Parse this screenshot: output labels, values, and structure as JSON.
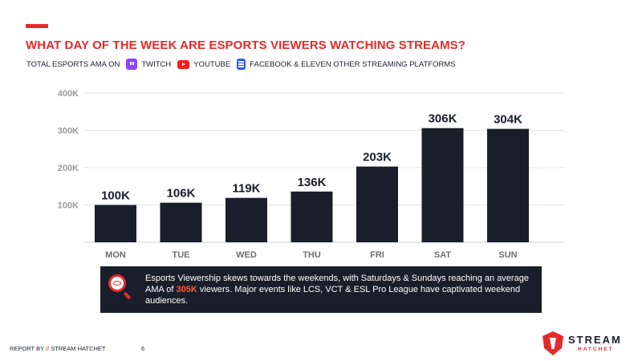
{
  "header": {
    "title": "WHAT DAY OF THE WEEK ARE ESPORTS VIEWERS WATCHING STREAMS?",
    "subtitle_prefix": "TOTAL ESPORTS AMA ON",
    "platforms": [
      {
        "label": "TWITCH",
        "icon": "twitch-icon",
        "color": "#8b46ff"
      },
      {
        "label": "YOUTUBE",
        "icon": "youtube-icon",
        "color": "#ff1a1a"
      },
      {
        "label": "FACEBOOK & ELEVEN OTHER STREAMING PLATFORMS",
        "icon": "streaming-platforms-icon",
        "color": "#2b5be8"
      }
    ]
  },
  "chart_data": {
    "type": "bar",
    "title": "WHAT DAY OF THE WEEK ARE ESPORTS VIEWERS WATCHING STREAMS?",
    "categories": [
      "MON",
      "TUE",
      "WED",
      "THU",
      "FRI",
      "SAT",
      "SUN"
    ],
    "values": [
      100000,
      106000,
      119000,
      136000,
      203000,
      306000,
      304000
    ],
    "data_labels": [
      "100K",
      "106K",
      "119K",
      "136K",
      "203K",
      "306K",
      "304K"
    ],
    "yticks": [
      100000,
      200000,
      300000,
      400000
    ],
    "ytick_labels": [
      "100K",
      "200K",
      "300K",
      "400K"
    ],
    "ylim": [
      0,
      400000
    ],
    "xlabel": "",
    "ylabel": "",
    "grid": true,
    "bar_color": "#1a1e2a"
  },
  "callout": {
    "icon": "magnifier-eye-icon",
    "text_before": "Esports Viewership skews towards the weekends, with Saturdays & Sundays reaching an average AMA of ",
    "highlight": "305K",
    "text_after": " viewers. Major events like LCS, VCT & ESL Pro League have captivated weekend audiences."
  },
  "footer": {
    "report_by": "REPORT BY",
    "slashes": "//",
    "brand": "STREAM HATCHET",
    "page_number": "6"
  },
  "logo": {
    "word": "STREAM",
    "sub": "HATCHET"
  },
  "colors": {
    "accent": "#e62a2a",
    "dark": "#1a1e2a",
    "highlight": "#ff5a36"
  }
}
